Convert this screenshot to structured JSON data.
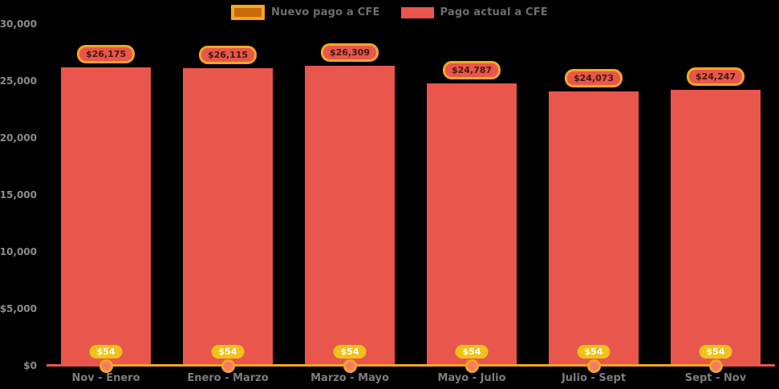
{
  "chart_data": {
    "type": "bar",
    "title": "",
    "xlabel": "",
    "ylabel": "",
    "ylim": [
      0,
      30000
    ],
    "grid": false,
    "legend_position": "top-center",
    "background_color": "#000000",
    "categories": [
      "Nov - Enero",
      "Enero - Marzo",
      "Marzo - Mayo",
      "Mayo - Julio",
      "Julio - Sept",
      "Sept - Nov"
    ],
    "y_ticks": [
      {
        "value": 0,
        "label": "$0"
      },
      {
        "value": 5000,
        "label": "$5,000"
      },
      {
        "value": 10000,
        "label": "$10,000"
      },
      {
        "value": 15000,
        "label": "$15,000"
      },
      {
        "value": 20000,
        "label": "$20,000"
      },
      {
        "value": 25000,
        "label": "$25,000"
      },
      {
        "value": 30000,
        "label": "$30,000"
      }
    ],
    "series": [
      {
        "name": "Nuevo pago a CFE",
        "type": "line",
        "values": [
          54,
          54,
          54,
          54,
          54,
          54
        ],
        "labels": [
          "$54",
          "$54",
          "$54",
          "$54",
          "$54",
          "$54"
        ],
        "line_color": "#f5a623",
        "marker_fill": "#f37c6a",
        "marker_border": "#f5a623",
        "badge_fill": "#f1c219",
        "badge_text_color": "#ffffff",
        "legend_swatch_fill": "#c96a0a",
        "legend_swatch_border": "#f5a623"
      },
      {
        "name": "Pago actual a CFE",
        "type": "bar",
        "values": [
          26175,
          26115,
          26309,
          24787,
          24073,
          24247
        ],
        "labels": [
          "$26,175",
          "$26,115",
          "$26,309",
          "$24,787",
          "$24,073",
          "$24,247"
        ],
        "bar_color": "#e8564c",
        "badge_fill": "#e8564c",
        "badge_border": "#f5a623",
        "badge_text_color": "#3f1c0e",
        "legend_swatch_fill": "#e8564c"
      }
    ],
    "axis_line_color": "#e8564c",
    "y_label_color": "#8c8c8c",
    "x_label_color": "#7d7d7d",
    "legend_text_color": "#6d6d6d"
  }
}
